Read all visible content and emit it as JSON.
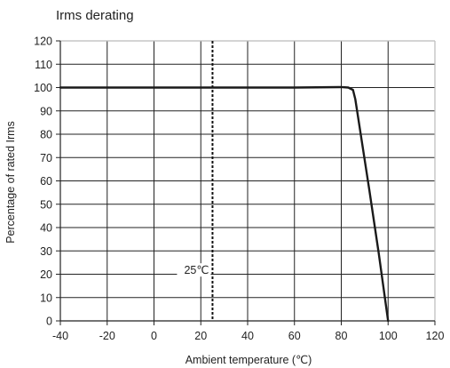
{
  "chart_data": {
    "type": "line",
    "title": "Irms derating",
    "xlabel": "Ambient temperature (℃)",
    "ylabel": "Percentage of rated Irms",
    "xlim": [
      -40,
      120
    ],
    "ylim": [
      0,
      120
    ],
    "x_ticks": [
      -40,
      -20,
      0,
      20,
      40,
      60,
      80,
      100,
      120
    ],
    "y_ticks": [
      0,
      10,
      20,
      30,
      40,
      50,
      60,
      70,
      80,
      90,
      100,
      110,
      120
    ],
    "x_tick_labels": [
      "-40",
      "-20",
      "0",
      "20",
      "40",
      "60",
      "80",
      "100",
      "120"
    ],
    "y_tick_labels": [
      "0",
      "10",
      "20",
      "30",
      "40",
      "50",
      "60",
      "70",
      "80",
      "90",
      "100",
      "110",
      "120"
    ],
    "grid": true,
    "series": [
      {
        "x": [
          -40,
          60,
          80,
          83,
          85,
          86,
          88,
          92,
          96,
          100
        ],
        "y": [
          100,
          100,
          100.2,
          100,
          99,
          95,
          82,
          56,
          29,
          0
        ]
      }
    ],
    "annotations": [
      {
        "type": "vertical-dashed-line",
        "x": 25,
        "label": "25℃"
      }
    ]
  },
  "colors": {
    "grid": "#222222",
    "frame": "#bbbbbb",
    "series": "#1a1a1a",
    "text": "#222222"
  }
}
